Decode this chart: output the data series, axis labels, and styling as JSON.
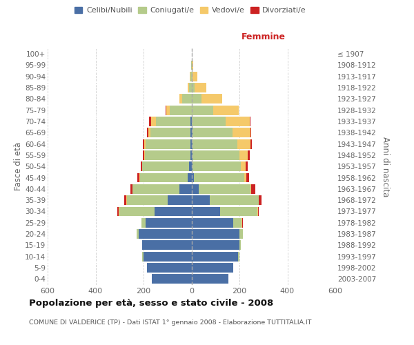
{
  "age_groups": [
    "0-4",
    "5-9",
    "10-14",
    "15-19",
    "20-24",
    "25-29",
    "30-34",
    "35-39",
    "40-44",
    "45-49",
    "50-54",
    "55-59",
    "60-64",
    "65-69",
    "70-74",
    "75-79",
    "80-84",
    "85-89",
    "90-94",
    "95-99",
    "100+"
  ],
  "birth_years": [
    "2003-2007",
    "1998-2002",
    "1993-1997",
    "1988-1992",
    "1983-1987",
    "1978-1982",
    "1973-1977",
    "1968-1972",
    "1963-1967",
    "1958-1962",
    "1953-1957",
    "1948-1952",
    "1943-1947",
    "1938-1942",
    "1933-1937",
    "1928-1932",
    "1923-1927",
    "1918-1922",
    "1913-1917",
    "1908-1912",
    "≤ 1907"
  ],
  "male": {
    "celibi": [
      165,
      185,
      200,
      205,
      220,
      190,
      155,
      100,
      50,
      15,
      10,
      5,
      5,
      5,
      3,
      0,
      0,
      0,
      0,
      0,
      0
    ],
    "coniugati": [
      0,
      0,
      5,
      2,
      10,
      20,
      145,
      170,
      195,
      200,
      195,
      190,
      185,
      165,
      145,
      90,
      40,
      10,
      5,
      2,
      0
    ],
    "vedovi": [
      0,
      0,
      0,
      0,
      0,
      0,
      5,
      2,
      2,
      2,
      2,
      3,
      8,
      10,
      20,
      15,
      10,
      5,
      2,
      0,
      0
    ],
    "divorziati": [
      0,
      0,
      0,
      0,
      0,
      0,
      5,
      8,
      8,
      10,
      5,
      5,
      5,
      5,
      8,
      3,
      0,
      0,
      0,
      0,
      0
    ]
  },
  "female": {
    "nubili": [
      155,
      175,
      195,
      200,
      200,
      175,
      120,
      75,
      30,
      10,
      5,
      5,
      5,
      5,
      2,
      2,
      2,
      2,
      0,
      0,
      0
    ],
    "coniugate": [
      0,
      0,
      5,
      5,
      15,
      35,
      155,
      205,
      215,
      210,
      200,
      195,
      185,
      165,
      140,
      90,
      40,
      10,
      5,
      2,
      0
    ],
    "vedove": [
      0,
      0,
      0,
      0,
      0,
      2,
      2,
      2,
      5,
      10,
      20,
      35,
      55,
      75,
      100,
      105,
      85,
      50,
      20,
      5,
      0
    ],
    "divorziate": [
      0,
      0,
      0,
      0,
      0,
      2,
      5,
      10,
      15,
      10,
      10,
      8,
      8,
      5,
      3,
      0,
      0,
      0,
      0,
      0,
      0
    ]
  },
  "colors": {
    "celibi": "#4a6fa5",
    "coniugati": "#b5cb8b",
    "vedovi": "#f5c96a",
    "divorziati": "#cc2222"
  },
  "xlim": 600,
  "title": "Popolazione per età, sesso e stato civile - 2008",
  "subtitle": "COMUNE DI VALDERICE (TP) - Dati ISTAT 1° gennaio 2008 - Elaborazione TUTTITALIA.IT",
  "ylabel_left": "Fasce di età",
  "ylabel_right": "Anni di nascita",
  "xlabel_right": "Femmine",
  "background_color": "#ffffff",
  "grid_color": "#cccccc",
  "bar_height": 0.85
}
